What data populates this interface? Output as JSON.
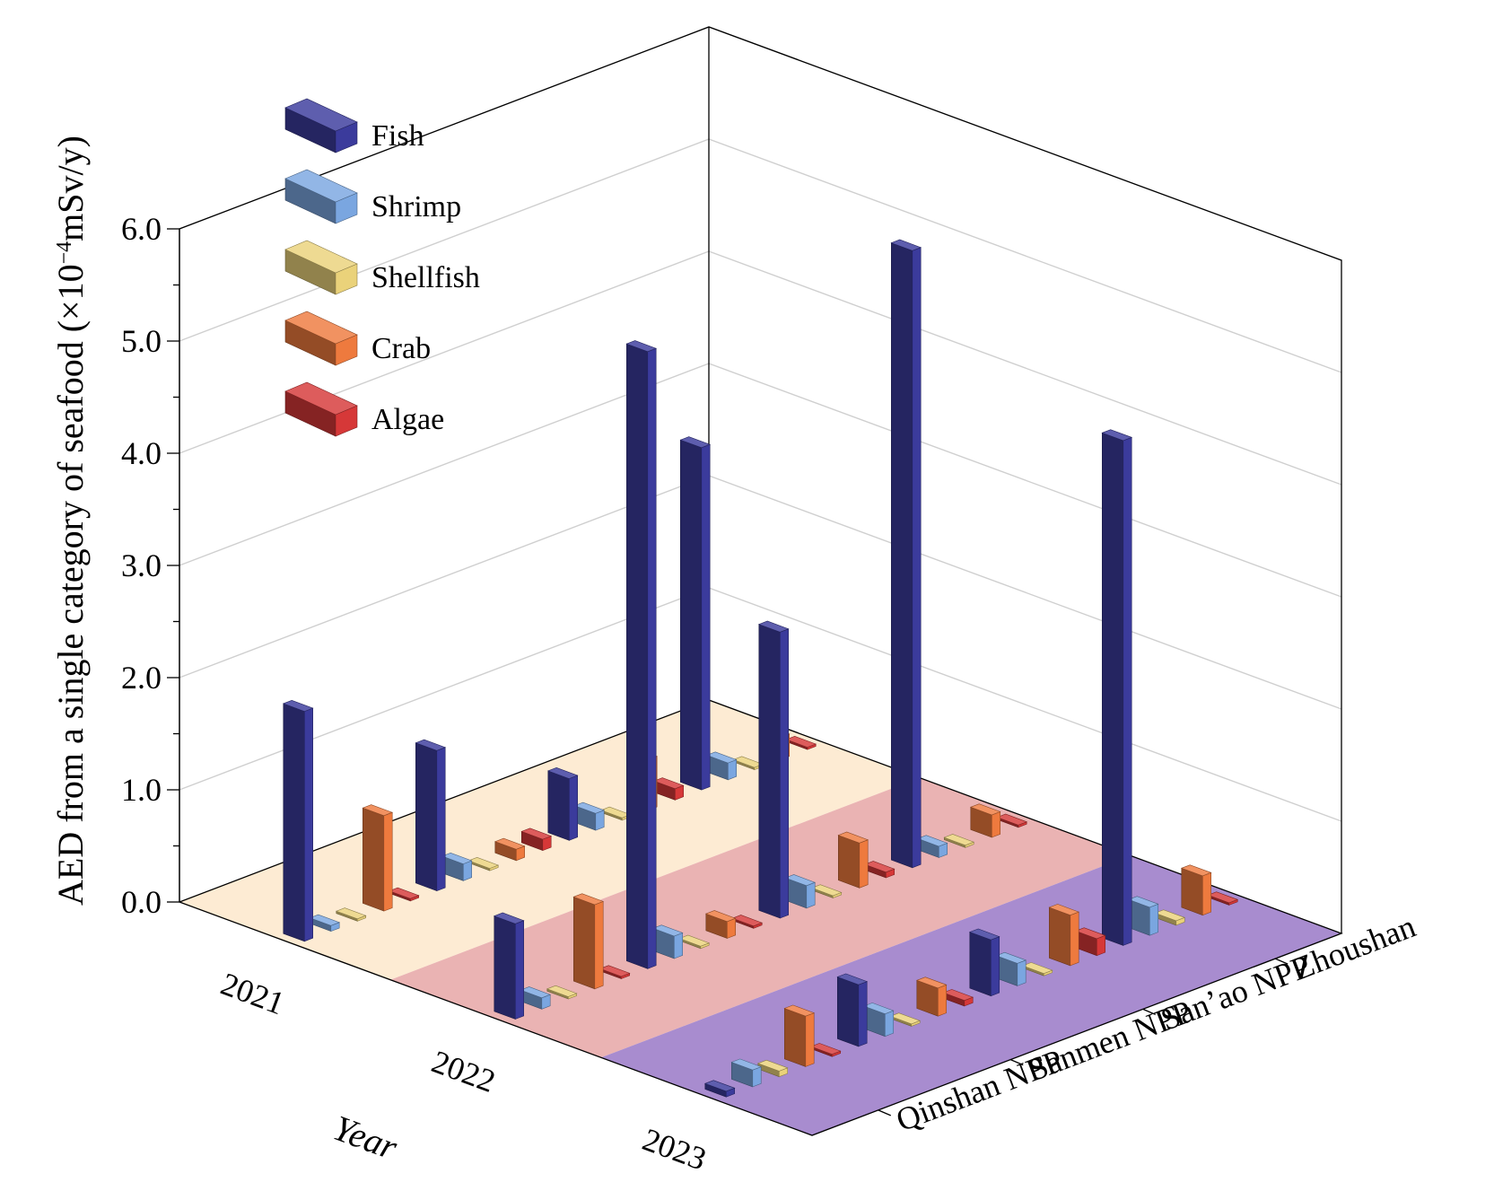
{
  "chart_data": {
    "type": "bar",
    "subtype": "3d-bar",
    "title": "",
    "zlabel": "AED from a single category of seafood (×10",
    "zlabel_sup": "−4",
    "zlabel_unit": "mSv/y)",
    "xlabel": "Year",
    "ylabel": "",
    "years": [
      "2021",
      "2022",
      "2023"
    ],
    "sites": [
      "Qinshan NPP",
      "Sanmen NPP",
      "San’ao NPP",
      "Zhoushan"
    ],
    "zlim": [
      0,
      6
    ],
    "zticks": [
      "0.0",
      "1.0",
      "2.0",
      "3.0",
      "4.0",
      "5.0",
      "6.0"
    ],
    "grid": true,
    "legend_position": "top-left",
    "floor_colors": [
      "#fdebd3",
      "#eab3b3",
      "#a88ccf"
    ],
    "series": [
      {
        "name": "Fish",
        "color": "#3b3b9c",
        "values": [
          [
            2.05,
            1.25,
            0.55,
            3.05
          ],
          [
            0.85,
            5.5,
            2.55,
            5.5
          ],
          [
            0.05,
            0.55,
            0.5,
            4.5
          ]
        ]
      },
      {
        "name": "Shrimp",
        "color": "#7aa6e0",
        "values": [
          [
            0.05,
            0.15,
            0.15,
            0.15
          ],
          [
            0.1,
            0.2,
            0.2,
            0.1
          ],
          [
            0.15,
            0.2,
            0.2,
            0.25
          ]
        ]
      },
      {
        "name": "Shellfish",
        "color": "#ead27a",
        "values": [
          [
            0.02,
            0.02,
            0.02,
            0.02
          ],
          [
            0.02,
            0.02,
            0.02,
            0.02
          ],
          [
            0.05,
            0.02,
            0.02,
            0.04
          ]
        ]
      },
      {
        "name": "Crab",
        "color": "#ee7a3e",
        "values": [
          [
            0.85,
            0.1,
            0.45,
            0.2
          ],
          [
            0.75,
            0.15,
            0.4,
            0.2
          ],
          [
            0.45,
            0.25,
            0.45,
            0.35
          ]
        ]
      },
      {
        "name": "Algae",
        "color": "#d63838",
        "values": [
          [
            0.02,
            0.1,
            0.1,
            0.02
          ],
          [
            0.02,
            0.02,
            0.05,
            0.02
          ],
          [
            0.02,
            0.05,
            0.15,
            0.02
          ]
        ]
      }
    ]
  }
}
